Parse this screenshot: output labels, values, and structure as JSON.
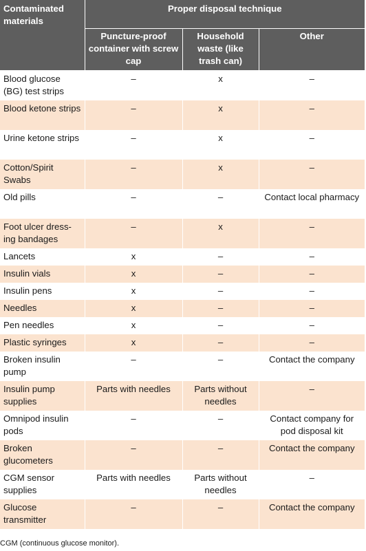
{
  "header": {
    "materials": "Contaminated materials",
    "proper": "Proper disposal technique",
    "puncture": "Puncture-proof container with screw cap",
    "household": "Household waste (like trash can)",
    "other": "Other"
  },
  "rows": [
    {
      "material": "Blood glucose (BG) test strips",
      "puncture": "–",
      "household": "x",
      "other": "–"
    },
    {
      "material": "Blood ketone strips",
      "puncture": "–",
      "household": "x",
      "other": "–"
    },
    {
      "material": "Urine ketone strips",
      "puncture": "–",
      "household": "x",
      "other": "–"
    },
    {
      "material": "Cotton/Spirit Swabs",
      "puncture": "–",
      "household": "x",
      "other": "–"
    },
    {
      "material": "Old pills",
      "puncture": "–",
      "household": "–",
      "other": "Contact local pharmacy"
    },
    {
      "material": "Foot ulcer dress-ing bandages",
      "puncture": "–",
      "household": "x",
      "other": "–"
    },
    {
      "material": "Lancets",
      "puncture": "x",
      "household": "–",
      "other": "–"
    },
    {
      "material": "Insulin vials",
      "puncture": "x",
      "household": "–",
      "other": "–"
    },
    {
      "material": "Insulin pens",
      "puncture": "x",
      "household": "–",
      "other": "–"
    },
    {
      "material": "Needles",
      "puncture": "x",
      "household": "–",
      "other": "–"
    },
    {
      "material": "Pen needles",
      "puncture": "x",
      "household": "–",
      "other": "–"
    },
    {
      "material": "Plastic syringes",
      "puncture": "x",
      "household": "–",
      "other": "–"
    },
    {
      "material": "Broken insulin pump",
      "puncture": "–",
      "household": "–",
      "other": "Contact the company"
    },
    {
      "material": "Insulin pump supplies",
      "puncture": "Parts with needles",
      "household": "Parts without needles",
      "other": "–"
    },
    {
      "material": "Omnipod insulin pods",
      "puncture": "–",
      "household": "–",
      "other": "Contact company for pod disposal kit"
    },
    {
      "material": "Broken glucometers",
      "puncture": "–",
      "household": "–",
      "other": "Contact the company"
    },
    {
      "material": "CGM sensor supplies",
      "puncture": "Parts with needles",
      "household": "Parts without needles",
      "other": "–"
    },
    {
      "material": "Glucose transmitter",
      "puncture": "–",
      "household": "–",
      "other": "Contact the company"
    }
  ],
  "footnote": "CGM (continuous glucose monitor).",
  "colors": {
    "header_bg": "#5e5e5e",
    "stripe_bg": "#fbe3cf"
  }
}
